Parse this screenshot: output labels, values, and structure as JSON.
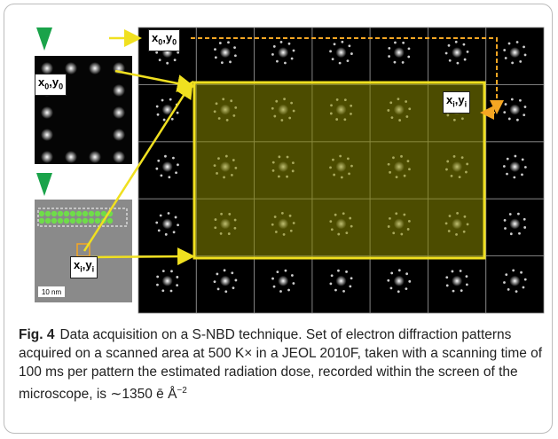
{
  "figure": {
    "labels": [
      {
        "base1": "x",
        "sub1": "0",
        "base2": ",y",
        "sub2": "0"
      },
      {
        "base1": "x",
        "sub1": "0",
        "base2": ",y",
        "sub2": "0"
      },
      {
        "base1": "x",
        "sub1": "i",
        "base2": ",y",
        "sub2": "i"
      },
      {
        "base1": "x",
        "sub1": "i",
        "base2": ",y",
        "sub2": "i"
      }
    ],
    "scale_bar": "10 nm"
  },
  "caption": {
    "label": "Fig. 4",
    "text": "Data acquisition on a S-NBD technique. Set of electron diffraction patterns acquired on a scanned area at 500 K× in a JEOL 2010F, taken with a scanning time of 100 ms per pattern the estimated radiation dose, recorded within the screen of the microscope, is ∼1350 ē Å",
    "superscript": "−2"
  }
}
